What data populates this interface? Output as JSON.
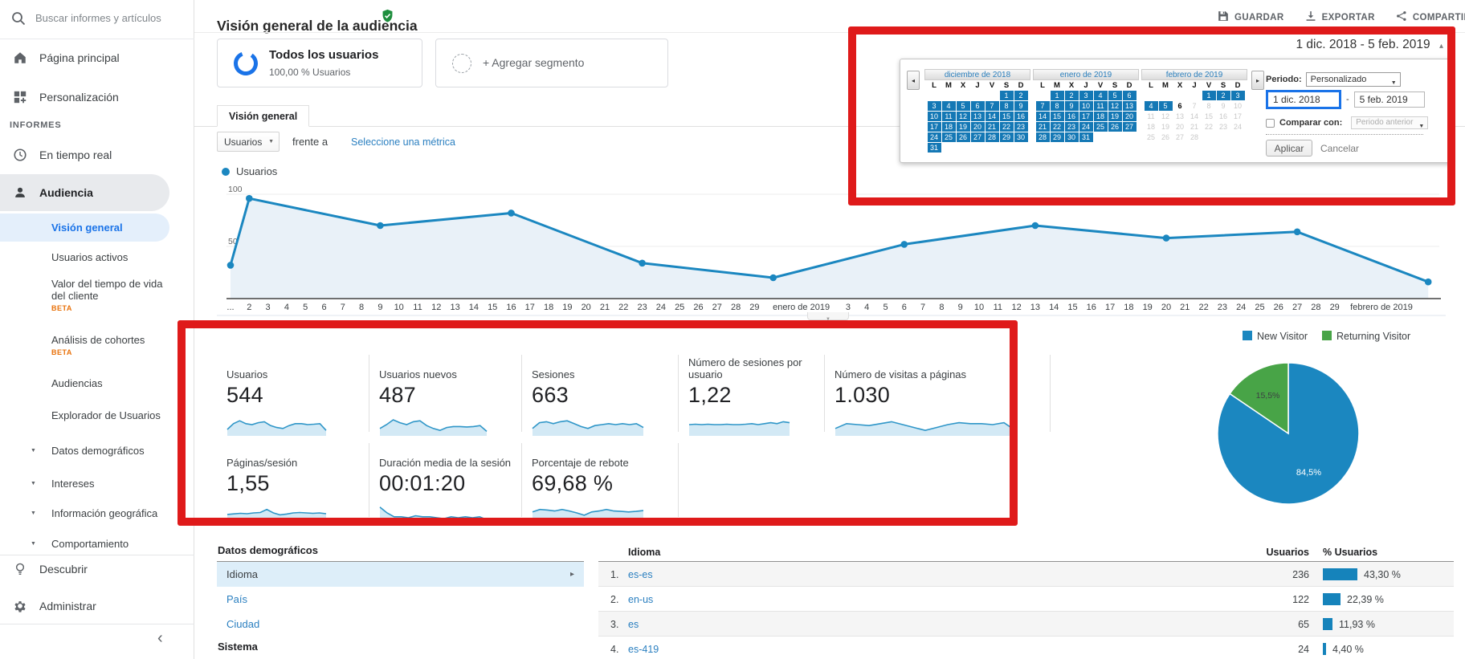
{
  "colors": {
    "accent_blue": "#1a73e8",
    "chart_blue": "#1b87c0",
    "spark_blue": "#2f96c8",
    "pie_green": "#48a447",
    "beta_orange": "#e8710a",
    "annotation_red": "#df1a1a",
    "selected_day_blue": "#1478b5",
    "link_blue": "#2a7fc0"
  },
  "sidebar": {
    "search_placeholder": "Buscar informes y artículos",
    "items": [
      {
        "id": "pagina-principal",
        "icon": "home",
        "label": "Página principal"
      },
      {
        "id": "personalizacion",
        "icon": "customize",
        "label": "Personalización"
      },
      {
        "id": "informes",
        "heading": "INFORMES"
      },
      {
        "id": "en-tiempo-real",
        "icon": "clock",
        "label": "En tiempo real"
      },
      {
        "id": "audiencia",
        "icon": "person",
        "label": "Audiencia",
        "active": true
      },
      {
        "id": "vision-general",
        "sub": true,
        "label": "Visión general",
        "selected": true
      },
      {
        "id": "usuarios-activos",
        "sub": true,
        "label": "Usuarios activos"
      },
      {
        "id": "valor-tiempo-vida",
        "sub": true,
        "label": "Valor del tiempo de vida del cliente",
        "beta": "BETA"
      },
      {
        "id": "analisis-cohortes",
        "sub": true,
        "label": "Análisis de cohortes",
        "beta": "BETA"
      },
      {
        "id": "audiencias",
        "sub": true,
        "label": "Audiencias"
      },
      {
        "id": "explorador-usuarios",
        "sub": true,
        "label": "Explorador de Usuarios"
      },
      {
        "id": "datos-demograficos",
        "sub": true,
        "caret": true,
        "label": "Datos demográficos"
      },
      {
        "id": "intereses",
        "sub": true,
        "caret": true,
        "label": "Intereses"
      },
      {
        "id": "informacion-geografica",
        "sub": true,
        "caret": true,
        "label": "Información geográfica"
      },
      {
        "id": "comportamiento",
        "sub": true,
        "caret": true,
        "label": "Comportamiento",
        "clipped": true
      },
      {
        "id": "divider-1",
        "divider": true
      },
      {
        "id": "descubrir",
        "icon": "bulb",
        "label": "Descubrir"
      },
      {
        "id": "administrar",
        "icon": "gear",
        "label": "Administrar"
      }
    ]
  },
  "header": {
    "title": "Visión general de la audiencia",
    "actions": [
      {
        "id": "guardar",
        "icon": "save",
        "label": "GUARDAR"
      },
      {
        "id": "exportar",
        "icon": "download",
        "label": "EXPORTAR"
      },
      {
        "id": "compartir",
        "icon": "share",
        "label": "COMPARTIR"
      }
    ]
  },
  "segments": {
    "all_users": {
      "title": "Todos los usuarios",
      "subtitle": "100,00 % Usuarios"
    },
    "add_label": "+ Agregar segmento"
  },
  "tabs": [
    {
      "label": "Visión general",
      "active": true
    }
  ],
  "controls": {
    "metric": "Usuarios",
    "between": "frente a",
    "select_metric_link": "Seleccione una métrica"
  },
  "legend": {
    "label": "Usuarios"
  },
  "chart_data": [
    {
      "type": "line",
      "title": "Usuarios",
      "ylim": [
        0,
        108
      ],
      "yticks": [
        50,
        100
      ],
      "grid": true,
      "points_day_value": [
        [
          1,
          32
        ],
        [
          2,
          96
        ],
        [
          9,
          70
        ],
        [
          16,
          82
        ],
        [
          23,
          34
        ],
        [
          30,
          20
        ],
        [
          37,
          52
        ],
        [
          44,
          70
        ],
        [
          51,
          58
        ],
        [
          58,
          64
        ],
        [
          65,
          16
        ]
      ],
      "x_domain": [
        1,
        65.8
      ],
      "x_ticks": [
        [
          "...",
          1
        ],
        [
          "2",
          2
        ],
        [
          "3",
          3
        ],
        [
          "4",
          4
        ],
        [
          "5",
          5
        ],
        [
          "6",
          6
        ],
        [
          "7",
          7
        ],
        [
          "8",
          8
        ],
        [
          "9",
          9
        ],
        [
          "10",
          10
        ],
        [
          "11",
          11
        ],
        [
          "12",
          12
        ],
        [
          "13",
          13
        ],
        [
          "14",
          14
        ],
        [
          "15",
          15
        ],
        [
          "16",
          16
        ],
        [
          "17",
          17
        ],
        [
          "18",
          18
        ],
        [
          "19",
          19
        ],
        [
          "20",
          20
        ],
        [
          "21",
          21
        ],
        [
          "22",
          22
        ],
        [
          "23",
          23
        ],
        [
          "24",
          24
        ],
        [
          "25",
          25
        ],
        [
          "26",
          26
        ],
        [
          "27",
          27
        ],
        [
          "28",
          28
        ],
        [
          "29",
          29
        ],
        [
          "enero de 2019",
          31.5
        ],
        [
          "3",
          34
        ],
        [
          "4",
          35
        ],
        [
          "5",
          36
        ],
        [
          "6",
          37
        ],
        [
          "7",
          38
        ],
        [
          "8",
          39
        ],
        [
          "9",
          40
        ],
        [
          "10",
          41
        ],
        [
          "11",
          42
        ],
        [
          "12",
          43
        ],
        [
          "13",
          44
        ],
        [
          "14",
          45
        ],
        [
          "15",
          46
        ],
        [
          "16",
          47
        ],
        [
          "17",
          48
        ],
        [
          "18",
          49
        ],
        [
          "19",
          50
        ],
        [
          "20",
          51
        ],
        [
          "21",
          52
        ],
        [
          "22",
          53
        ],
        [
          "23",
          54
        ],
        [
          "24",
          55
        ],
        [
          "25",
          56
        ],
        [
          "26",
          57
        ],
        [
          "27",
          58
        ],
        [
          "28",
          59
        ],
        [
          "29",
          60
        ],
        [
          "febrero de 2019",
          62.5
        ]
      ]
    },
    {
      "type": "pie",
      "legend": [
        "New Visitor",
        "Returning Visitor"
      ],
      "values": [
        84.5,
        15.5
      ],
      "labels": [
        "84,5%",
        "15,5%"
      ],
      "colors": [
        "#1b87c0",
        "#48a447"
      ],
      "legend_position": "top"
    }
  ],
  "metrics": {
    "cards_row1": [
      {
        "label": "Usuarios",
        "value": "544",
        "spark": [
          0.25,
          0.55,
          0.7,
          0.55,
          0.5,
          0.6,
          0.65,
          0.45,
          0.35,
          0.3,
          0.45,
          0.55,
          0.55,
          0.5,
          0.52,
          0.55,
          0.2
        ]
      },
      {
        "label": "Usuarios nuevos",
        "value": "487",
        "spark": [
          0.3,
          0.5,
          0.75,
          0.6,
          0.5,
          0.65,
          0.7,
          0.45,
          0.3,
          0.2,
          0.35,
          0.4,
          0.4,
          0.38,
          0.4,
          0.45,
          0.15
        ]
      },
      {
        "label": "Sesiones",
        "value": "663",
        "spark": [
          0.3,
          0.6,
          0.65,
          0.55,
          0.65,
          0.7,
          0.55,
          0.4,
          0.3,
          0.45,
          0.5,
          0.55,
          0.5,
          0.55,
          0.5,
          0.55,
          0.35
        ]
      },
      {
        "label": "Número de sesiones por usuario",
        "value": "1,22",
        "spark": [
          0.5,
          0.52,
          0.5,
          0.52,
          0.5,
          0.5,
          0.52,
          0.5,
          0.5,
          0.52,
          0.55,
          0.5,
          0.55,
          0.6,
          0.55,
          0.65,
          0.6
        ]
      },
      {
        "label": "Número de visitas a páginas",
        "value": "1.030",
        "spark": [
          0.3,
          0.55,
          0.5,
          0.45,
          0.55,
          0.65,
          0.5,
          0.35,
          0.2,
          0.35,
          0.5,
          0.6,
          0.55,
          0.55,
          0.5,
          0.6,
          0.2
        ]
      }
    ],
    "cards_row2": [
      {
        "label": "Páginas/sesión",
        "value": "1,55",
        "spark": [
          0.42,
          0.45,
          0.48,
          0.46,
          0.5,
          0.52,
          0.68,
          0.5,
          0.4,
          0.44,
          0.5,
          0.52,
          0.5,
          0.48,
          0.5,
          0.46
        ]
      },
      {
        "label": "Duración media de la sesión",
        "value": "00:01:20",
        "spark": [
          0.8,
          0.5,
          0.3,
          0.3,
          0.25,
          0.35,
          0.3,
          0.3,
          0.25,
          0.2,
          0.3,
          0.25,
          0.3,
          0.25,
          0.3,
          0.15
        ]
      },
      {
        "label": "Porcentaje de rebote",
        "value": "69,68 %",
        "spark": [
          0.55,
          0.68,
          0.65,
          0.6,
          0.68,
          0.6,
          0.5,
          0.38,
          0.55,
          0.6,
          0.68,
          0.6,
          0.58,
          0.55,
          0.58,
          0.62
        ]
      }
    ]
  },
  "demographics": {
    "panel_title": "Datos demográficos",
    "categories": [
      {
        "label": "Idioma",
        "selected": true
      },
      {
        "label": "País",
        "selected": false
      },
      {
        "label": "Ciudad",
        "selected": false
      }
    ],
    "subsection": "Sistema",
    "table": {
      "dimension_header": "Idioma",
      "users_header": "Usuarios",
      "pct_header": "% Usuarios",
      "rows": [
        {
          "rank": "1.",
          "label": "es-es",
          "users": "236",
          "pct": 43.3,
          "pct_label": "43,30 %"
        },
        {
          "rank": "2.",
          "label": "en-us",
          "users": "122",
          "pct": 22.39,
          "pct_label": "22,39 %"
        },
        {
          "rank": "3.",
          "label": "es",
          "users": "65",
          "pct": 11.93,
          "pct_label": "11,93 %"
        },
        {
          "rank": "4.",
          "label": "es-419",
          "users": "24",
          "pct": 4.4,
          "pct_label": "4,40 %"
        }
      ]
    }
  },
  "datepicker": {
    "range_label": "1 dic. 2018 - 5 feb. 2019",
    "period_label": "Periodo:",
    "period_value": "Personalizado",
    "start_date": "1 dic. 2018",
    "separator": "-",
    "end_date": "5 feb. 2019",
    "compare_label": "Comparar con:",
    "compare_value": "Periodo anterior",
    "apply_label": "Aplicar",
    "cancel_label": "Cancelar",
    "dow": [
      "L",
      "M",
      "X",
      "J",
      "V",
      "S",
      "D"
    ],
    "months": [
      {
        "title": "diciembre de 2018",
        "weeks": [
          [
            null,
            null,
            null,
            null,
            null,
            [
              1,
              "s"
            ],
            [
              2,
              "s"
            ]
          ],
          [
            [
              3,
              "s"
            ],
            [
              4,
              "s"
            ],
            [
              5,
              "s"
            ],
            [
              6,
              "s"
            ],
            [
              7,
              "s"
            ],
            [
              8,
              "s"
            ],
            [
              9,
              "s"
            ]
          ],
          [
            [
              10,
              "s"
            ],
            [
              11,
              "s"
            ],
            [
              12,
              "s"
            ],
            [
              13,
              "s"
            ],
            [
              14,
              "s"
            ],
            [
              15,
              "s"
            ],
            [
              16,
              "s"
            ]
          ],
          [
            [
              17,
              "s"
            ],
            [
              18,
              "s"
            ],
            [
              19,
              "s"
            ],
            [
              20,
              "s"
            ],
            [
              21,
              "s"
            ],
            [
              22,
              "s"
            ],
            [
              23,
              "s"
            ]
          ],
          [
            [
              24,
              "s"
            ],
            [
              25,
              "s"
            ],
            [
              26,
              "s"
            ],
            [
              27,
              "s"
            ],
            [
              28,
              "s"
            ],
            [
              29,
              "s"
            ],
            [
              30,
              "s"
            ]
          ],
          [
            [
              31,
              "s"
            ],
            null,
            null,
            null,
            null,
            null,
            null
          ]
        ]
      },
      {
        "title": "enero de 2019",
        "weeks": [
          [
            null,
            [
              1,
              "s"
            ],
            [
              2,
              "s"
            ],
            [
              3,
              "s"
            ],
            [
              4,
              "s"
            ],
            [
              5,
              "s"
            ],
            [
              6,
              "s"
            ]
          ],
          [
            [
              7,
              "s"
            ],
            [
              8,
              "s"
            ],
            [
              9,
              "s"
            ],
            [
              10,
              "s"
            ],
            [
              11,
              "s"
            ],
            [
              12,
              "s"
            ],
            [
              13,
              "s"
            ]
          ],
          [
            [
              14,
              "s"
            ],
            [
              15,
              "s"
            ],
            [
              16,
              "s"
            ],
            [
              17,
              "s"
            ],
            [
              18,
              "s"
            ],
            [
              19,
              "s"
            ],
            [
              20,
              "s"
            ]
          ],
          [
            [
              21,
              "s"
            ],
            [
              22,
              "s"
            ],
            [
              23,
              "s"
            ],
            [
              24,
              "s"
            ],
            [
              25,
              "s"
            ],
            [
              26,
              "s"
            ],
            [
              27,
              "s"
            ]
          ],
          [
            [
              28,
              "s"
            ],
            [
              29,
              "s"
            ],
            [
              30,
              "s"
            ],
            [
              31,
              "s"
            ],
            null,
            null,
            null
          ]
        ]
      },
      {
        "title": "febrero de 2019",
        "weeks": [
          [
            null,
            null,
            null,
            null,
            [
              1,
              "s"
            ],
            [
              2,
              "s"
            ],
            [
              3,
              "s"
            ]
          ],
          [
            [
              4,
              "s"
            ],
            [
              5,
              "s"
            ],
            [
              6,
              "t"
            ],
            [
              7,
              "o"
            ],
            [
              8,
              "o"
            ],
            [
              9,
              "o"
            ],
            [
              10,
              "o"
            ]
          ],
          [
            [
              11,
              "o"
            ],
            [
              12,
              "o"
            ],
            [
              13,
              "o"
            ],
            [
              14,
              "o"
            ],
            [
              15,
              "o"
            ],
            [
              16,
              "o"
            ],
            [
              17,
              "o"
            ]
          ],
          [
            [
              18,
              "o"
            ],
            [
              19,
              "o"
            ],
            [
              20,
              "o"
            ],
            [
              21,
              "o"
            ],
            [
              22,
              "o"
            ],
            [
              23,
              "o"
            ],
            [
              24,
              "o"
            ]
          ],
          [
            [
              25,
              "o"
            ],
            [
              26,
              "o"
            ],
            [
              27,
              "o"
            ],
            [
              28,
              "o"
            ],
            null,
            null,
            null
          ]
        ]
      }
    ]
  }
}
